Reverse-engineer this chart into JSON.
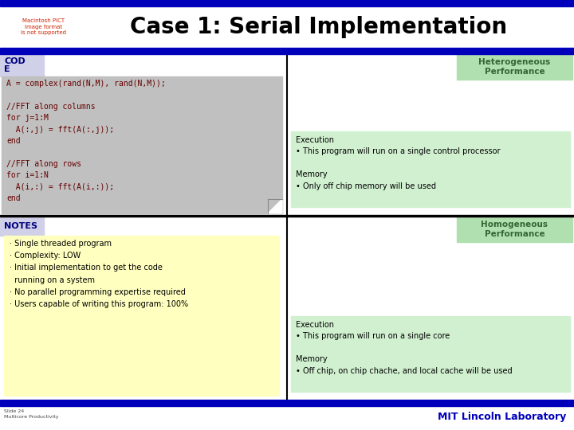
{
  "title": "Case 1: Serial Implementation",
  "title_fontsize": 20,
  "title_color": "#000000",
  "bar_color": "#0000bb",
  "background_color": "#ffffff",
  "header_left_top": "COD\nE",
  "header_right_top": "Heterogeneous\nPerformance",
  "header_left_bottom": "NOTES",
  "header_right_bottom": "Homogeneous\nPerformance",
  "code_text": "A = complex(rand(N,M), rand(N,M));\n\n//FFT along columns\nfor j=1:M\n  A(:,j) = fft(A(:,j));\nend\n\n//FFT along rows\nfor i=1:N\n  A(i,:) = fft(A(i,:));\nend",
  "code_bg": "#c0c0c0",
  "code_text_color": "#660000",
  "hetero_label_bg": "#b0e0b0",
  "hetero_label_color": "#336633",
  "homo_label_bg": "#b0e0b0",
  "homo_label_color": "#336633",
  "exec_mem_bg": "#d0f0d0",
  "notes_bg": "#ffffc0",
  "exec_top_title": "Execution",
  "exec_top_bullet": "• This program will run on a single control processor",
  "mem_top_title": "Memory",
  "mem_top_bullet": "• Only off chip memory will be used",
  "exec_bottom_title": "Execution",
  "exec_bottom_bullet": "• This program will run on a single core",
  "mem_bottom_title": "Memory",
  "mem_bottom_bullet": "• Off chip, on chip chache, and local cache will be used",
  "notes_bullets": [
    "· Single threaded program",
    "· Complexity: LOW",
    "· Initial implementation to get the code\n  running on a system",
    "· No parallel programming expertise required",
    "· Users capable of writing this program: 100%"
  ],
  "footer_text": "MIT Lincoln Laboratory",
  "slide_label": "Slide 24\nMulticore Productivity",
  "divider_color": "#000000",
  "header_bg_color": "#d0d0e8",
  "header_left_color": "#000080",
  "broken_image_text": "Macintosh PICT\nimage format\nis not supported",
  "broken_image_color": "#cc2200"
}
